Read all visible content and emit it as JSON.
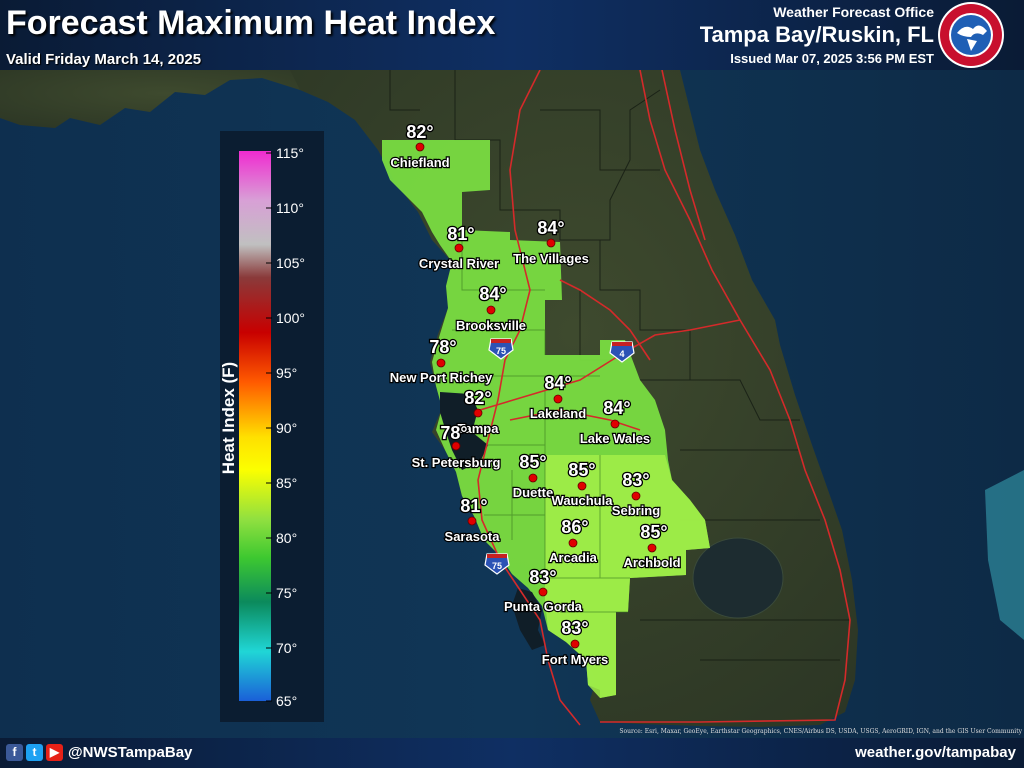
{
  "header": {
    "title": "Forecast Maximum Heat Index",
    "valid": "Valid Friday March 14, 2025",
    "office_label": "Weather Forecast Office",
    "office_name": "Tampa Bay/Ruskin, FL",
    "issued": "Issued Mar 07, 2025 3:56 PM EST",
    "logo_text": "NATIONAL WEATHER SERVICE"
  },
  "legend": {
    "title": "Heat Index (F)",
    "ticks": [
      "115°",
      "110°",
      "105°",
      "100°",
      "95°",
      "90°",
      "85°",
      "80°",
      "75°",
      "70°",
      "65°"
    ]
  },
  "shields": [
    {
      "number": "75"
    },
    {
      "number": "4"
    },
    {
      "number": "75"
    }
  ],
  "cities": [
    {
      "name": "Chiefland",
      "value": "82°"
    },
    {
      "name": "Crystal River",
      "value": "81°"
    },
    {
      "name": "The Villages",
      "value": "84°"
    },
    {
      "name": "Brooksville",
      "value": "84°"
    },
    {
      "name": "New Port Richey",
      "value": "78°"
    },
    {
      "name": "Tampa",
      "value": "82°"
    },
    {
      "name": "Lakeland",
      "value": "84°"
    },
    {
      "name": "Lake Wales",
      "value": "84°"
    },
    {
      "name": "St. Petersburg",
      "value": "78°"
    },
    {
      "name": "Duette",
      "value": "85°"
    },
    {
      "name": "Wauchula",
      "value": "85°"
    },
    {
      "name": "Sebring",
      "value": "83°"
    },
    {
      "name": "Sarasota",
      "value": "81°"
    },
    {
      "name": "Arcadia",
      "value": "86°"
    },
    {
      "name": "Archbold",
      "value": "85°"
    },
    {
      "name": "Punta Gorda",
      "value": "83°"
    },
    {
      "name": "Fort Myers",
      "value": "83°"
    }
  ],
  "footer": {
    "handle": "@NWSTampaBay",
    "site": "weather.gov/tampabay",
    "source": "Source: Esri, Maxar, GeoEye, Earthstar Geographics, CNES/Airbus DS, USDA, USGS, AeroGRID, IGN, and the GIS User Community",
    "social_icons": [
      "facebook-icon",
      "twitter-icon",
      "youtube-icon"
    ]
  },
  "colors": {
    "zone_green": "#7be042",
    "zone_light": "#9ff04a",
    "marker": "#e00000",
    "roads": "#d42a2a"
  }
}
